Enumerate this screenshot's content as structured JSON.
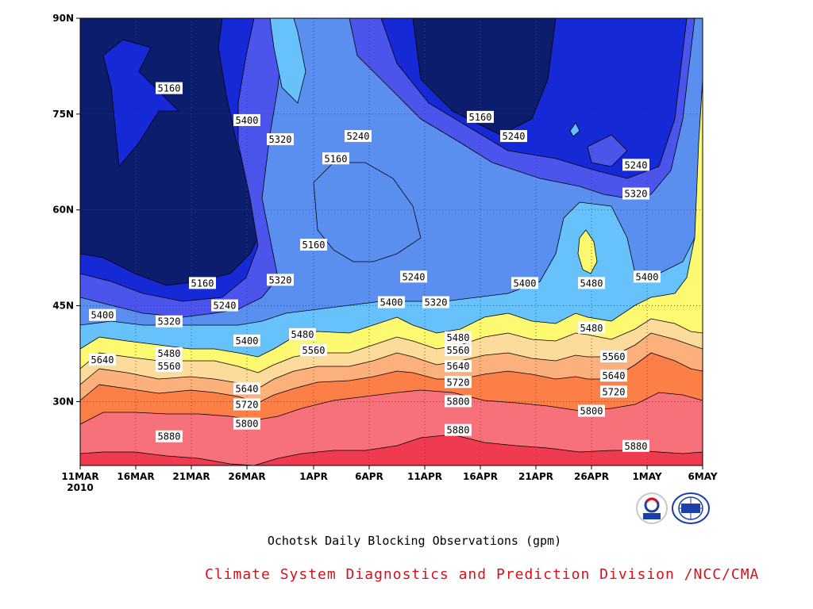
{
  "chart_data": {
    "type": "contour",
    "title": "Ochotsk Daily Blocking Observations (gpm)",
    "credit": "Climate System Diagnostics and Prediction Division /NCC/CMA",
    "xlim": [
      "2010-03-11",
      "2010-05-06"
    ],
    "ylim": [
      20,
      90
    ],
    "x_ticks": [
      "11MAR",
      "16MAR",
      "21MAR",
      "26MAR",
      "1APR",
      "6APR",
      "11APR",
      "16APR",
      "21APR",
      "26APR",
      "1MAY",
      "6MAY"
    ],
    "x_year": "2010",
    "y_ticks": [
      "90N",
      "75N",
      "60N",
      "45N",
      "30N"
    ],
    "y_tick_values": [
      90,
      75,
      60,
      45,
      30
    ],
    "levels": [
      5160,
      5240,
      5320,
      5400,
      5480,
      5560,
      5640,
      5720,
      5800,
      5880
    ],
    "band_colors": [
      "#0c1d6e",
      "#1629d7",
      "#4b55ec",
      "#5a8ff0",
      "#67c2fb",
      "#fdfa72",
      "#fddc9b",
      "#fcb17c",
      "#fc7f48",
      "#f7717a",
      "#f03a4f"
    ],
    "contour_labels": [
      {
        "text": "5160",
        "date": "2010-03-19",
        "lat": 79.0
      },
      {
        "text": "5400",
        "date": "2010-03-26",
        "lat": 74.0
      },
      {
        "text": "5320",
        "date": "2010-03-29",
        "lat": 71.0
      },
      {
        "text": "5240",
        "date": "2010-04-05",
        "lat": 71.5
      },
      {
        "text": "5160",
        "date": "2010-04-03",
        "lat": 68.0
      },
      {
        "text": "5160",
        "date": "2010-04-16",
        "lat": 74.5
      },
      {
        "text": "5240",
        "date": "2010-04-19",
        "lat": 71.5
      },
      {
        "text": "5240",
        "date": "2010-04-30",
        "lat": 67.0
      },
      {
        "text": "5320",
        "date": "2010-04-30",
        "lat": 62.5
      },
      {
        "text": "5160",
        "date": "2010-04-01",
        "lat": 54.5
      },
      {
        "text": "5160",
        "date": "2010-03-22",
        "lat": 48.5
      },
      {
        "text": "5320",
        "date": "2010-03-29",
        "lat": 49.0
      },
      {
        "text": "5240",
        "date": "2010-04-10",
        "lat": 49.5
      },
      {
        "text": "5400",
        "date": "2010-04-20",
        "lat": 48.5
      },
      {
        "text": "5480",
        "date": "2010-04-26",
        "lat": 48.5
      },
      {
        "text": "5400",
        "date": "2010-05-01",
        "lat": 49.5
      },
      {
        "text": "5240",
        "date": "2010-03-24",
        "lat": 45.0
      },
      {
        "text": "5400",
        "date": "2010-04-08",
        "lat": 45.5
      },
      {
        "text": "5320",
        "date": "2010-04-12",
        "lat": 45.5
      },
      {
        "text": "5400",
        "date": "2010-03-13",
        "lat": 43.5
      },
      {
        "text": "5320",
        "date": "2010-03-19",
        "lat": 42.5
      },
      {
        "text": "5480",
        "date": "2010-04-26",
        "lat": 41.5
      },
      {
        "text": "5400",
        "date": "2010-03-26",
        "lat": 39.5
      },
      {
        "text": "5480",
        "date": "2010-03-31",
        "lat": 40.5
      },
      {
        "text": "5560",
        "date": "2010-04-01",
        "lat": 38.0
      },
      {
        "text": "5480",
        "date": "2010-04-14",
        "lat": 40.0
      },
      {
        "text": "5560",
        "date": "2010-04-14",
        "lat": 38.0
      },
      {
        "text": "5480",
        "date": "2010-03-19",
        "lat": 37.5
      },
      {
        "text": "5560",
        "date": "2010-03-19",
        "lat": 35.5
      },
      {
        "text": "5640",
        "date": "2010-03-13",
        "lat": 36.5
      },
      {
        "text": "5640",
        "date": "2010-04-14",
        "lat": 35.5
      },
      {
        "text": "5560",
        "date": "2010-04-28",
        "lat": 37.0
      },
      {
        "text": "5720",
        "date": "2010-04-14",
        "lat": 33.0
      },
      {
        "text": "5640",
        "date": "2010-04-28",
        "lat": 34.0
      },
      {
        "text": "5640",
        "date": "2010-03-26",
        "lat": 32.0
      },
      {
        "text": "5720",
        "date": "2010-04-28",
        "lat": 31.5
      },
      {
        "text": "5720",
        "date": "2010-03-26",
        "lat": 29.5
      },
      {
        "text": "5800",
        "date": "2010-04-14",
        "lat": 30.0
      },
      {
        "text": "5800",
        "date": "2010-04-26",
        "lat": 28.5
      },
      {
        "text": "5800",
        "date": "2010-03-26",
        "lat": 26.5
      },
      {
        "text": "5880",
        "date": "2010-03-19",
        "lat": 24.5
      },
      {
        "text": "5880",
        "date": "2010-04-14",
        "lat": 25.5
      },
      {
        "text": "5880",
        "date": "2010-04-30",
        "lat": 23.0
      }
    ]
  }
}
